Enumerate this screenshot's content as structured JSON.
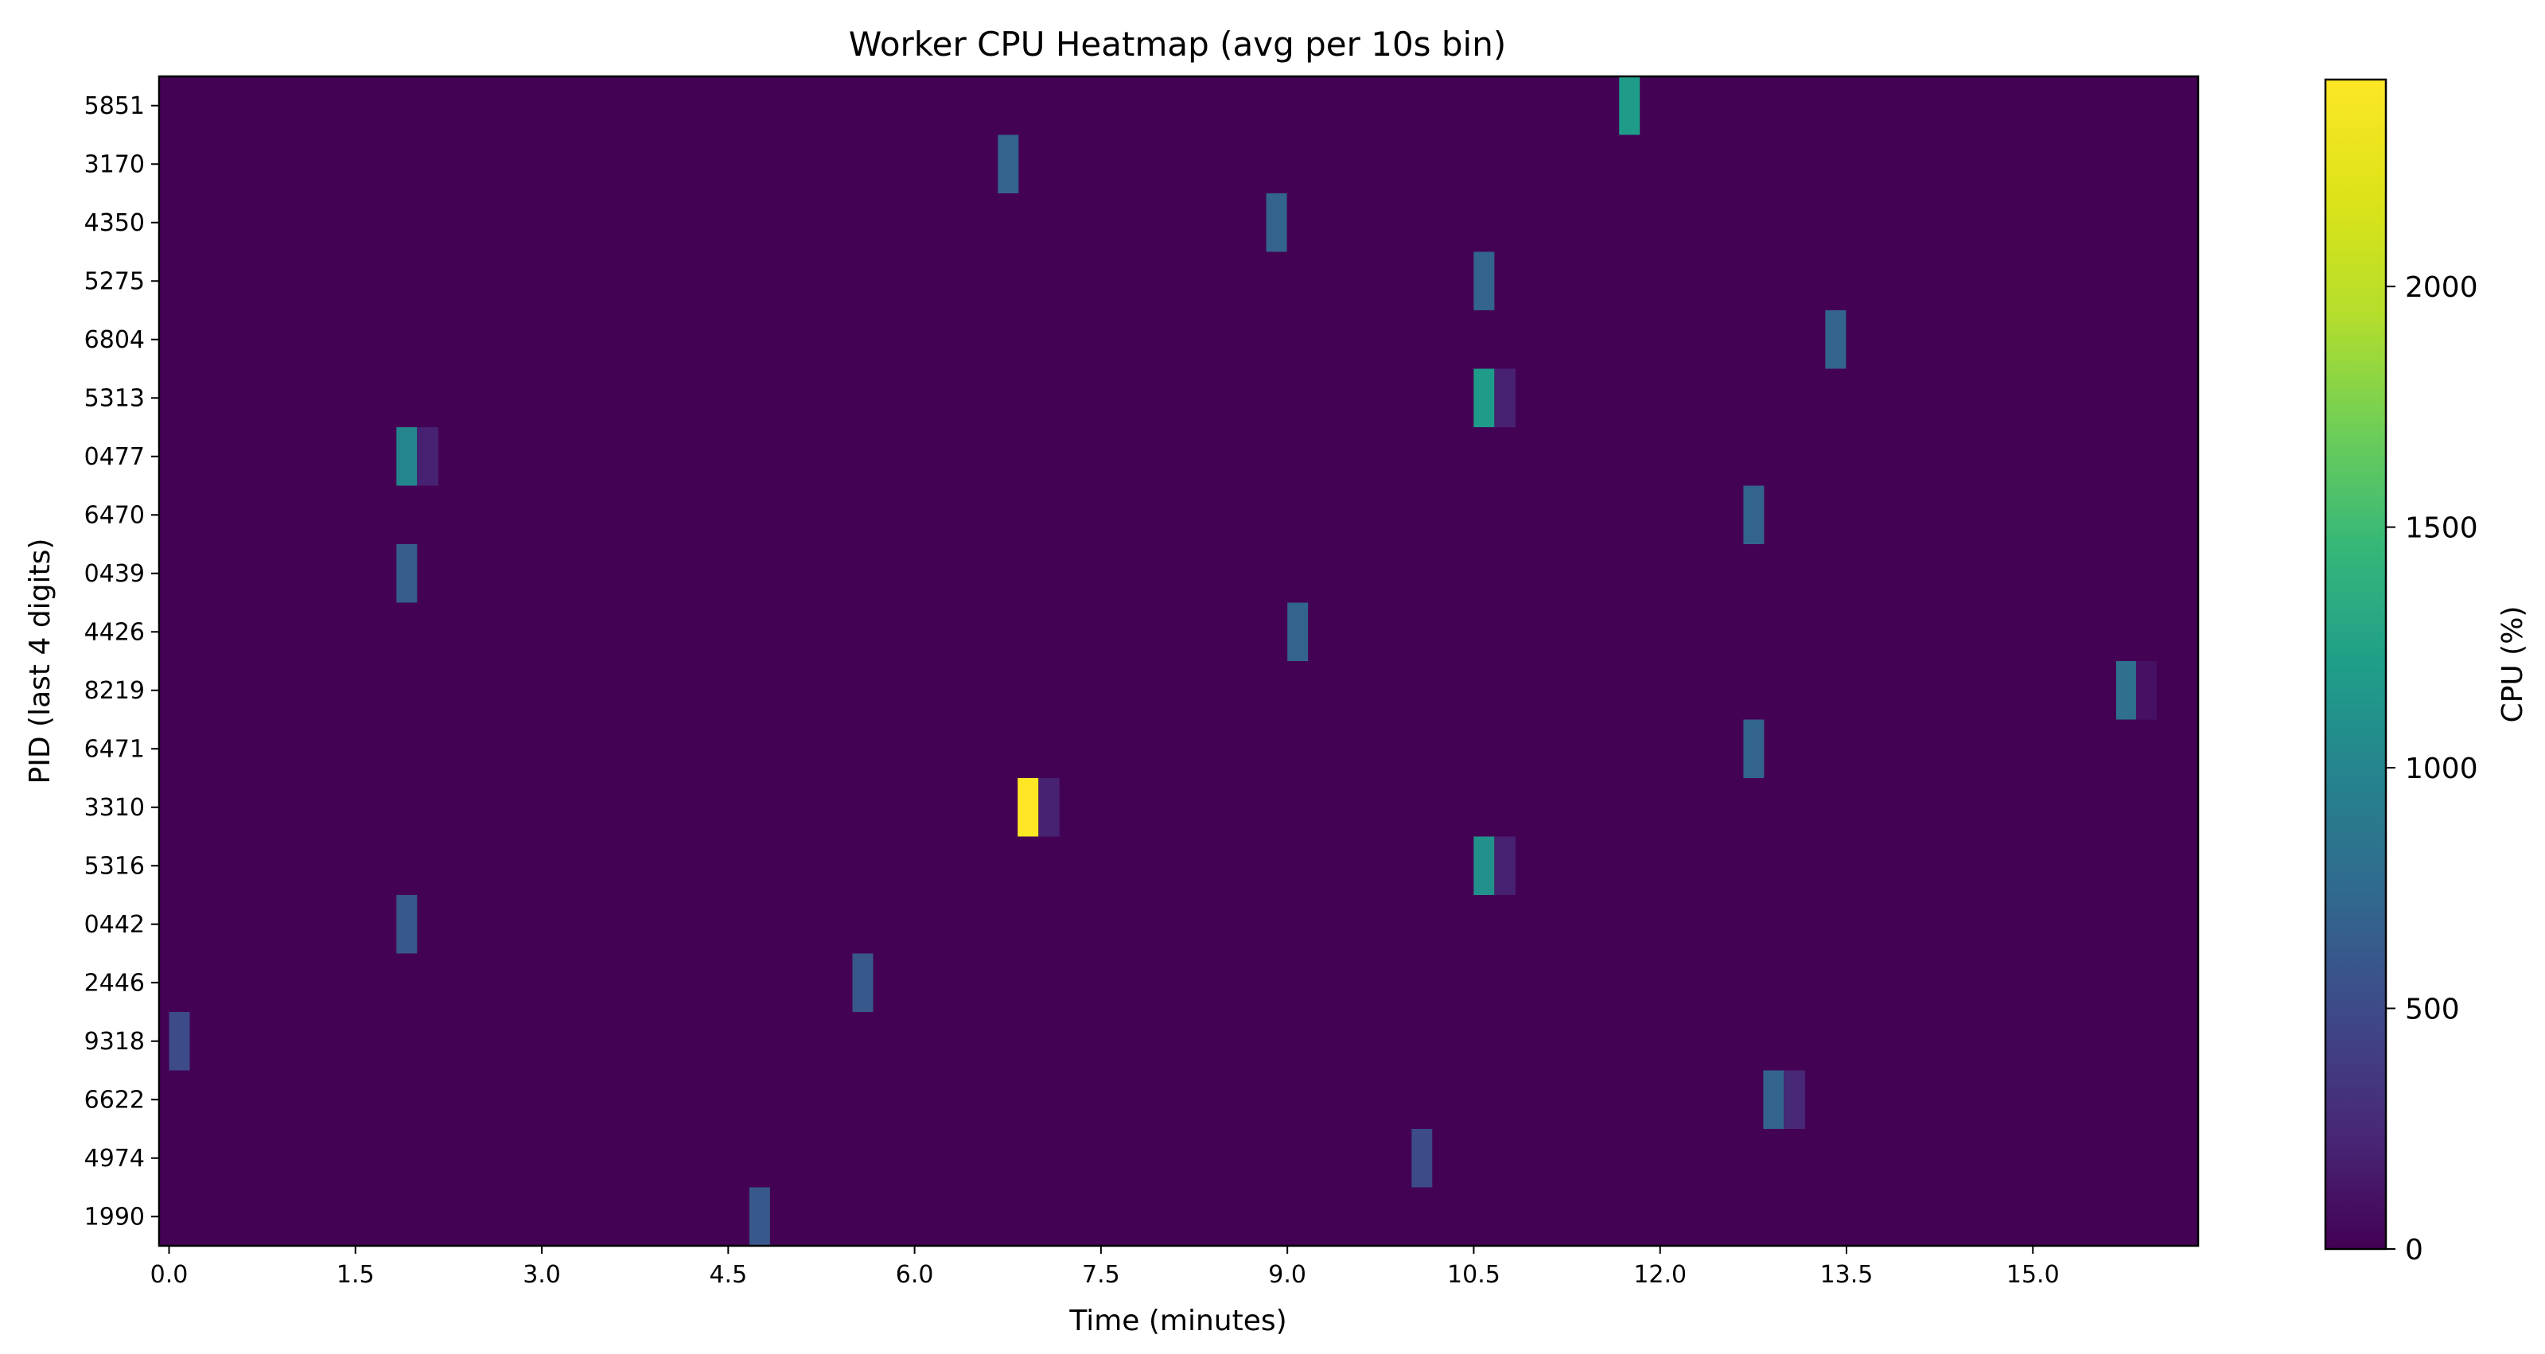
{
  "chart_data": {
    "type": "heatmap",
    "title": "Worker CPU Heatmap (avg per 10s bin)",
    "xlabel": "Time (minutes)",
    "ylabel": "PID (last 4 digits)",
    "colorbar_label": "CPU (%)",
    "colormap": "viridis",
    "bin_minutes": 0.1667,
    "xlim": [
      -0.08,
      16.33
    ],
    "xticks": [
      "0.0",
      "1.5",
      "3.0",
      "4.5",
      "6.0",
      "7.5",
      "9.0",
      "10.5",
      "12.0",
      "13.5",
      "15.0"
    ],
    "xtick_values": [
      0,
      1.5,
      3,
      4.5,
      6,
      7.5,
      9,
      10.5,
      12,
      13.5,
      15
    ],
    "crange": [
      0,
      2430
    ],
    "cticks": [
      "0",
      "500",
      "1000",
      "1500",
      "2000"
    ],
    "ctick_values": [
      0,
      500,
      1000,
      1500,
      2000
    ],
    "rows": [
      "5851",
      "3170",
      "4350",
      "5275",
      "6804",
      "5313",
      "0477",
      "6470",
      "0439",
      "4426",
      "8219",
      "6471",
      "3310",
      "5316",
      "0442",
      "2446",
      "9318",
      "6622",
      "4974",
      "1990"
    ],
    "background_value": 5,
    "cells": [
      {
        "row": "5851",
        "t": 11.67,
        "v": 1200
      },
      {
        "row": "3170",
        "t": 6.67,
        "v": 700
      },
      {
        "row": "4350",
        "t": 8.83,
        "v": 700
      },
      {
        "row": "5275",
        "t": 10.5,
        "v": 700
      },
      {
        "row": "6804",
        "t": 13.33,
        "v": 700
      },
      {
        "row": "5313",
        "t": 10.5,
        "v": 1200
      },
      {
        "row": "5313",
        "t": 10.67,
        "v": 200
      },
      {
        "row": "0477",
        "t": 1.83,
        "v": 1000
      },
      {
        "row": "0477",
        "t": 2.0,
        "v": 200
      },
      {
        "row": "6470",
        "t": 12.67,
        "v": 700
      },
      {
        "row": "0439",
        "t": 1.83,
        "v": 650
      },
      {
        "row": "4426",
        "t": 9.0,
        "v": 700
      },
      {
        "row": "8219",
        "t": 15.67,
        "v": 800
      },
      {
        "row": "8219",
        "t": 15.83,
        "v": 100
      },
      {
        "row": "6471",
        "t": 12.67,
        "v": 700
      },
      {
        "row": "3310",
        "t": 6.83,
        "v": 2430
      },
      {
        "row": "3310",
        "t": 7.0,
        "v": 200
      },
      {
        "row": "5316",
        "t": 10.5,
        "v": 1100
      },
      {
        "row": "5316",
        "t": 10.67,
        "v": 200
      },
      {
        "row": "0442",
        "t": 1.83,
        "v": 600
      },
      {
        "row": "2446",
        "t": 5.5,
        "v": 600
      },
      {
        "row": "9318",
        "t": 0.0,
        "v": 500
      },
      {
        "row": "6622",
        "t": 12.83,
        "v": 700
      },
      {
        "row": "6622",
        "t": 13.0,
        "v": 250
      },
      {
        "row": "4974",
        "t": 10.0,
        "v": 500
      },
      {
        "row": "1990",
        "t": 4.67,
        "v": 600
      }
    ]
  }
}
